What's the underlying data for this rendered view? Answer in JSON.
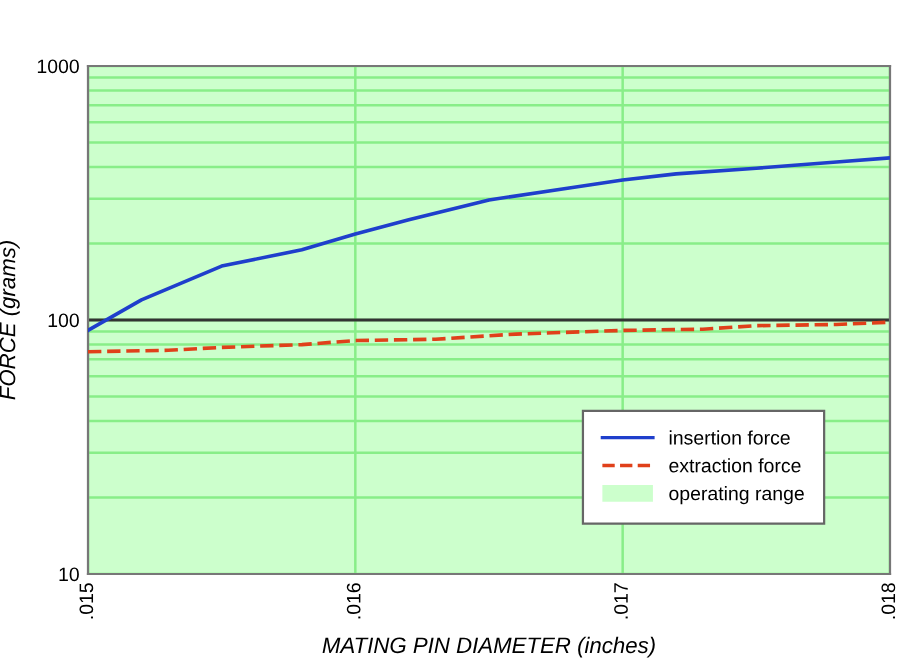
{
  "chart_data": {
    "type": "line",
    "xlabel": "MATING PIN DIAMETER (inches)",
    "ylabel": "FORCE (grams)",
    "series": [
      {
        "name": "insertion force",
        "color": "#1f3fcc",
        "line_style": "solid",
        "x": [
          0.015,
          0.0152,
          0.0155,
          0.0158,
          0.016,
          0.0162,
          0.0165,
          0.0168,
          0.017,
          0.0172,
          0.0175,
          0.0178,
          0.018
        ],
        "values": [
          91,
          120,
          163,
          189,
          218,
          248,
          297,
          331,
          356,
          376,
          396,
          419,
          435
        ]
      },
      {
        "name": "extraction force",
        "color": "#e0401a",
        "line_style": "dashed",
        "x": [
          0.015,
          0.0153,
          0.0155,
          0.0158,
          0.016,
          0.0163,
          0.0166,
          0.017,
          0.0173,
          0.0175,
          0.0178,
          0.018
        ],
        "values": [
          75,
          76,
          78,
          80,
          83,
          84,
          88,
          91,
          92,
          95,
          96,
          98
        ]
      }
    ],
    "bands": [
      {
        "axis": "x",
        "from": 0.015,
        "to": 0.018,
        "label": "operating range",
        "color": "#ccffcc"
      }
    ],
    "ref_lines": [
      {
        "axis": "y",
        "value": 100,
        "color": "#333333"
      }
    ],
    "log": "y",
    "xlim": [
      0.015,
      0.018
    ],
    "xticks": [
      {
        "value": 0.015,
        "label": ".015"
      },
      {
        "value": 0.016,
        "label": ".016"
      },
      {
        "value": 0.017,
        "label": ".017"
      },
      {
        "value": 0.018,
        "label": ".018"
      }
    ],
    "ylim": [
      10,
      1000
    ],
    "yticks": [
      10,
      {
        "value": 20,
        "label": null
      },
      {
        "value": 30,
        "label": null
      },
      {
        "value": 40,
        "label": null
      },
      {
        "value": 50,
        "label": null
      },
      {
        "value": 60,
        "label": null
      },
      {
        "value": 70,
        "label": null
      },
      {
        "value": 80,
        "label": null
      },
      {
        "value": 90,
        "label": null
      },
      100,
      {
        "value": 200,
        "label": null
      },
      {
        "value": 300,
        "label": null
      },
      {
        "value": 400,
        "label": null
      },
      {
        "value": 500,
        "label": null
      },
      {
        "value": 600,
        "label": null
      },
      {
        "value": 700,
        "label": null
      },
      {
        "value": 800,
        "label": null
      },
      {
        "value": 900,
        "label": null
      },
      1000
    ],
    "grid": true,
    "legend": "bottom right"
  }
}
